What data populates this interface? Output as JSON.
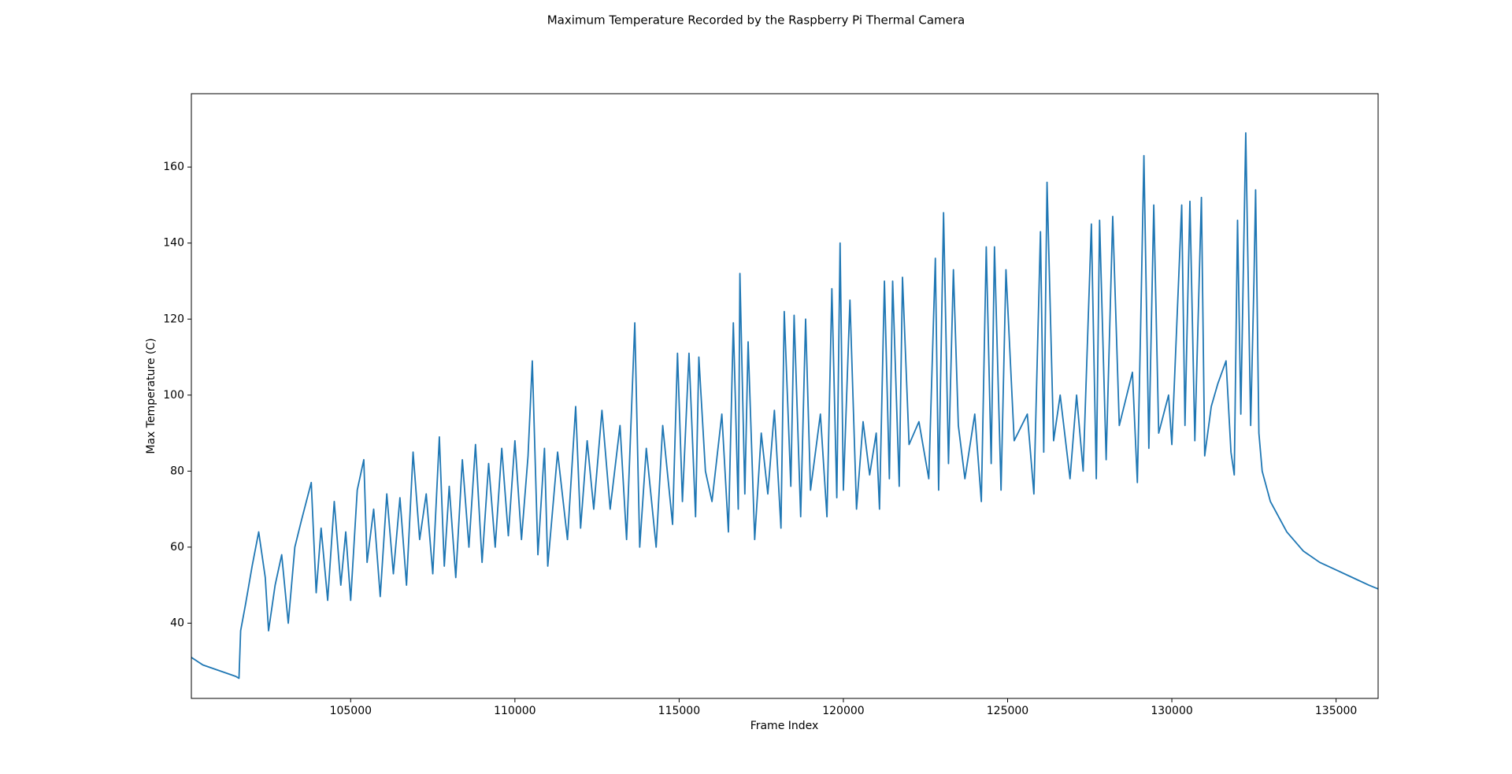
{
  "chart_data": {
    "type": "line",
    "title": "Maximum Temperature Recorded by the Raspberry Pi Thermal Camera",
    "x_label": "Frame Index",
    "y_label": "Max Temperature (C)",
    "xlim": [
      100150,
      136280
    ],
    "ylim": [
      20.2,
      179.3
    ],
    "xticks": [
      105000,
      110000,
      115000,
      120000,
      125000,
      130000,
      135000
    ],
    "yticks": [
      40,
      60,
      80,
      100,
      120,
      140,
      160
    ],
    "grid": false,
    "series": [
      {
        "color": "#1f77b4",
        "x": [
          100150,
          100500,
          101000,
          101500,
          101600,
          101650,
          101800,
          102000,
          102200,
          102400,
          102500,
          102700,
          102900,
          103100,
          103300,
          103500,
          103800,
          103950,
          104100,
          104300,
          104500,
          104700,
          104850,
          105000,
          105200,
          105400,
          105500,
          105700,
          105900,
          106100,
          106300,
          106500,
          106700,
          106900,
          107100,
          107300,
          107500,
          107700,
          107850,
          108000,
          108200,
          108400,
          108600,
          108800,
          109000,
          109200,
          109400,
          109600,
          109800,
          110000,
          110200,
          110400,
          110530,
          110700,
          110900,
          111000,
          111300,
          111600,
          111850,
          112000,
          112200,
          112400,
          112650,
          112900,
          113200,
          113400,
          113650,
          113800,
          114000,
          114300,
          114500,
          114800,
          114950,
          115100,
          115300,
          115500,
          115600,
          115800,
          116000,
          116300,
          116500,
          116650,
          116800,
          116850,
          117000,
          117100,
          117300,
          117500,
          117700,
          117900,
          118100,
          118200,
          118400,
          118500,
          118700,
          118850,
          119000,
          119300,
          119500,
          119650,
          119800,
          119900,
          120000,
          120200,
          120400,
          120600,
          120800,
          121000,
          121100,
          121250,
          121400,
          121500,
          121700,
          121800,
          122000,
          122300,
          122600,
          122800,
          122900,
          123050,
          123200,
          123350,
          123500,
          123700,
          124000,
          124200,
          124350,
          124500,
          124600,
          124800,
          124950,
          125200,
          125600,
          125800,
          126000,
          126100,
          126200,
          126400,
          126600,
          126900,
          127100,
          127300,
          127550,
          127700,
          127800,
          128000,
          128200,
          128400,
          128800,
          128950,
          129050,
          129150,
          129300,
          129450,
          129600,
          129900,
          130000,
          130300,
          130400,
          130550,
          130700,
          130900,
          131000,
          131200,
          131400,
          131650,
          131800,
          131900,
          132000,
          132100,
          132250,
          132400,
          132500,
          132550,
          132650,
          132750,
          133000,
          133500,
          134000,
          134500,
          135000,
          135500,
          136000,
          136280
        ],
        "values": [
          31,
          29,
          27.5,
          26,
          25.5,
          38,
          45,
          55,
          64,
          52,
          38,
          50,
          58,
          40,
          60,
          67,
          77,
          48,
          65,
          46,
          72,
          50,
          64,
          46,
          75,
          83,
          56,
          70,
          47,
          74,
          53,
          73,
          50,
          85,
          62,
          74,
          53,
          89,
          55,
          76,
          52,
          83,
          60,
          87,
          56,
          82,
          60,
          86,
          63,
          88,
          62,
          84,
          109,
          58,
          86,
          55,
          85,
          62,
          97,
          65,
          88,
          70,
          96,
          70,
          92,
          62,
          119,
          60,
          86,
          60,
          92,
          66,
          111,
          72,
          111,
          68,
          110,
          80,
          72,
          95,
          64,
          119,
          70,
          132,
          74,
          114,
          62,
          90,
          74,
          96,
          65,
          122,
          76,
          121,
          68,
          120,
          75,
          95,
          68,
          128,
          73,
          140,
          75,
          125,
          70,
          93,
          79,
          90,
          70,
          130,
          78,
          130,
          76,
          131,
          87,
          93,
          78,
          136,
          75,
          148,
          82,
          133,
          92,
          78,
          95,
          72,
          139,
          82,
          139,
          75,
          133,
          88,
          95,
          74,
          143,
          85,
          156,
          88,
          100,
          78,
          100,
          80,
          145,
          78,
          146,
          83,
          147,
          92,
          106,
          77,
          118,
          163,
          86,
          150,
          90,
          100,
          87,
          150,
          92,
          151,
          88,
          152,
          84,
          97,
          103,
          109,
          85,
          79,
          146,
          95,
          169,
          92,
          130,
          154,
          90,
          80,
          72,
          64,
          59,
          56,
          54,
          52,
          50,
          49
        ]
      }
    ]
  }
}
